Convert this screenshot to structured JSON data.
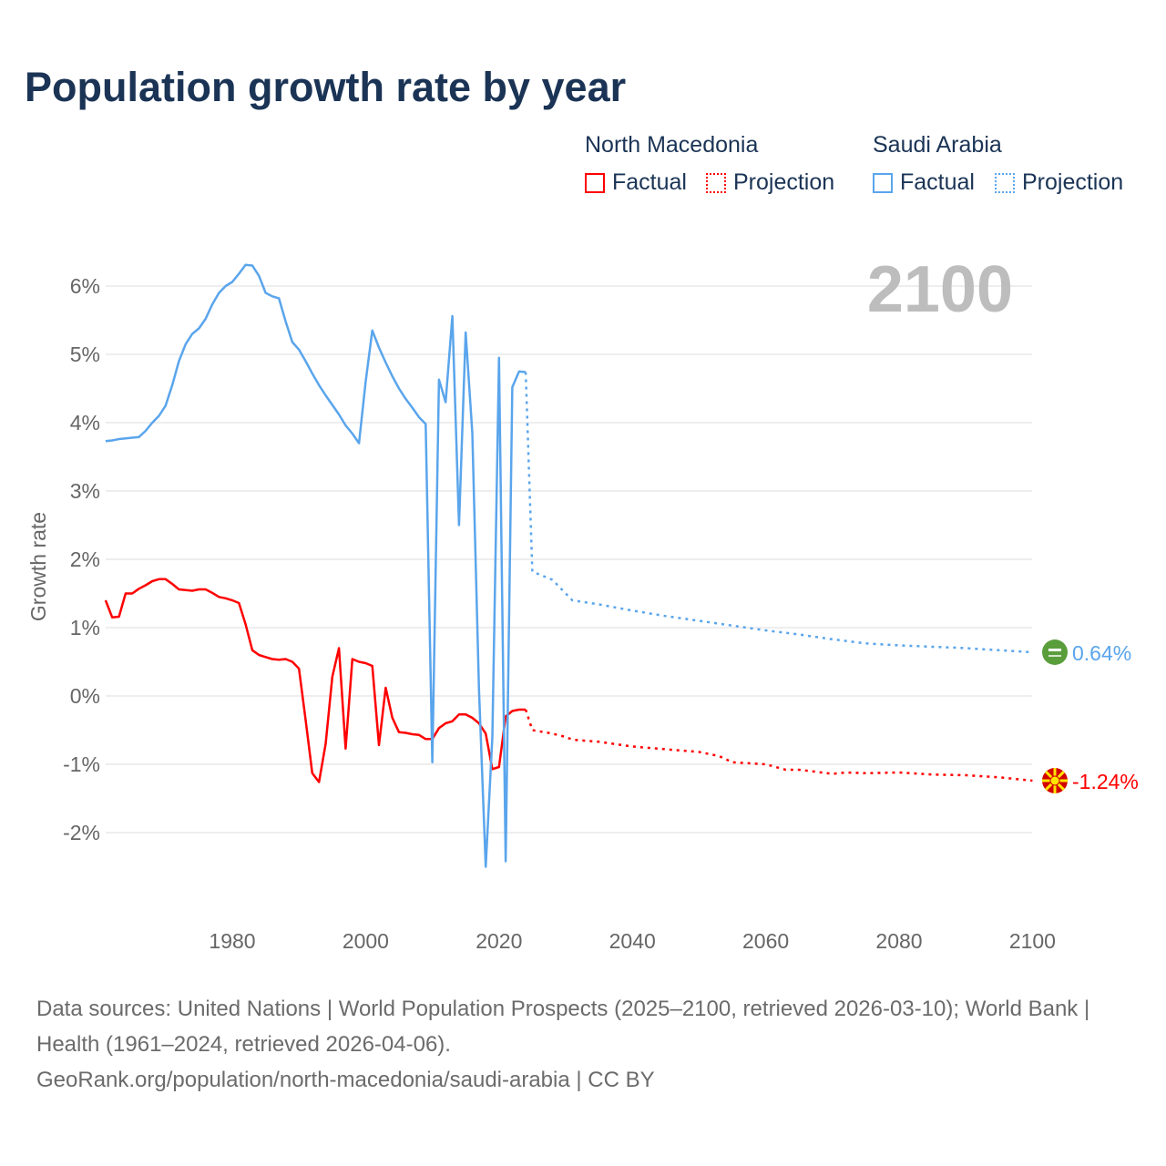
{
  "title": "Population growth rate by year",
  "legend": {
    "groups": [
      {
        "country": "North Macedonia",
        "factual": "Factual",
        "projection": "Projection",
        "color": "#ff0000"
      },
      {
        "country": "Saudi Arabia",
        "factual": "Factual",
        "projection": "Projection",
        "color": "#5aa5ec"
      }
    ]
  },
  "chart_data": {
    "type": "line",
    "title": "Population growth rate by year",
    "ylabel": "Growth rate",
    "xlabel": "",
    "year_label": "2100",
    "xlim": [
      1961,
      2100
    ],
    "ylim": [
      -3,
      6.5
    ],
    "x_ticks": [
      "1980",
      "2000",
      "2020",
      "2040",
      "2060",
      "2080",
      "2100"
    ],
    "x_tick_values": [
      1980,
      2000,
      2020,
      2040,
      2060,
      2080,
      2100
    ],
    "y_ticks": [
      "6%",
      "5%",
      "4%",
      "3%",
      "2%",
      "1%",
      "0%",
      "-1%",
      "-2%"
    ],
    "y_tick_values": [
      6,
      5,
      4,
      3,
      2,
      1,
      0,
      -1,
      -2
    ],
    "grid": true,
    "series": [
      {
        "name": "North Macedonia",
        "color": "#ff0000",
        "end_label": "-1.24%",
        "flag": "north-macedonia-flag",
        "factual": {
          "x": [
            1961,
            1962,
            1963,
            1964,
            1965,
            1966,
            1967,
            1968,
            1969,
            1970,
            1971,
            1972,
            1973,
            1974,
            1975,
            1976,
            1977,
            1978,
            1979,
            1980,
            1981,
            1982,
            1983,
            1984,
            1985,
            1986,
            1987,
            1988,
            1989,
            1990,
            1991,
            1992,
            1993,
            1994,
            1995,
            1996,
            1997,
            1998,
            1999,
            2000,
            2001,
            2002,
            2003,
            2004,
            2005,
            2006,
            2007,
            2008,
            2009,
            2010,
            2011,
            2012,
            2013,
            2014,
            2015,
            2016,
            2017,
            2018,
            2019,
            2020,
            2021,
            2022,
            2023,
            2024
          ],
          "y": [
            1.4,
            1.15,
            1.16,
            1.5,
            1.5,
            1.57,
            1.62,
            1.68,
            1.71,
            1.71,
            1.64,
            1.56,
            1.55,
            1.54,
            1.56,
            1.56,
            1.51,
            1.45,
            1.43,
            1.4,
            1.36,
            1.05,
            0.67,
            0.6,
            0.57,
            0.54,
            0.53,
            0.54,
            0.5,
            0.4,
            -0.35,
            -1.13,
            -1.26,
            -0.7,
            0.28,
            0.7,
            -0.77,
            0.54,
            0.5,
            0.48,
            0.44,
            -0.72,
            0.12,
            -0.32,
            -0.53,
            -0.54,
            -0.56,
            -0.57,
            -0.63,
            -0.63,
            -0.47,
            -0.4,
            -0.37,
            -0.27,
            -0.27,
            -0.32,
            -0.4,
            -0.55,
            -1.07,
            -1.04,
            -0.3,
            -0.22,
            -0.2,
            -0.2
          ]
        },
        "projection": {
          "x": [
            2024,
            2025,
            2028,
            2030,
            2031,
            2035,
            2040,
            2045,
            2050,
            2053,
            2055,
            2060,
            2063,
            2065,
            2070,
            2072,
            2075,
            2080,
            2085,
            2090,
            2095,
            2100
          ],
          "y": [
            -0.2,
            -0.5,
            -0.55,
            -0.6,
            -0.64,
            -0.67,
            -0.74,
            -0.78,
            -0.82,
            -0.88,
            -0.97,
            -1.0,
            -1.08,
            -1.08,
            -1.14,
            -1.12,
            -1.13,
            -1.12,
            -1.15,
            -1.16,
            -1.19,
            -1.24
          ]
        }
      },
      {
        "name": "Saudi Arabia",
        "color": "#5aa5ec",
        "end_label": "0.64%",
        "flag": "saudi-arabia-flag",
        "factual": {
          "x": [
            1961,
            1962,
            1963,
            1964,
            1965,
            1966,
            1967,
            1968,
            1969,
            1970,
            1971,
            1972,
            1973,
            1974,
            1975,
            1976,
            1977,
            1978,
            1979,
            1980,
            1981,
            1982,
            1983,
            1984,
            1985,
            1986,
            1987,
            1988,
            1989,
            1990,
            1991,
            1992,
            1993,
            1994,
            1995,
            1996,
            1997,
            1998,
            1999,
            2000,
            2001,
            2002,
            2003,
            2004,
            2005,
            2006,
            2007,
            2008,
            2009,
            2010,
            2011,
            2012,
            2013,
            2014,
            2015,
            2016,
            2017,
            2018,
            2019,
            2020,
            2021,
            2022,
            2023,
            2024
          ],
          "y": [
            3.73,
            3.74,
            3.76,
            3.77,
            3.78,
            3.79,
            3.88,
            4.0,
            4.1,
            4.25,
            4.55,
            4.9,
            5.15,
            5.3,
            5.38,
            5.52,
            5.73,
            5.9,
            6.0,
            6.06,
            6.18,
            6.31,
            6.3,
            6.15,
            5.9,
            5.85,
            5.82,
            5.48,
            5.18,
            5.07,
            4.9,
            4.72,
            4.55,
            4.4,
            4.26,
            4.12,
            3.96,
            3.84,
            3.7,
            4.6,
            5.35,
            5.1,
            4.88,
            4.68,
            4.5,
            4.35,
            4.22,
            4.08,
            3.98,
            -0.97,
            4.63,
            4.3,
            5.56,
            2.5,
            5.32,
            3.85,
            0.1,
            -2.5,
            -0.6,
            4.95,
            -2.42,
            4.52,
            4.75,
            4.74
          ]
        },
        "projection": {
          "x": [
            2024,
            2025,
            2028,
            2030,
            2031,
            2035,
            2040,
            2045,
            2050,
            2055,
            2060,
            2065,
            2070,
            2075,
            2080,
            2085,
            2090,
            2095,
            2100
          ],
          "y": [
            4.74,
            1.82,
            1.7,
            1.5,
            1.4,
            1.34,
            1.25,
            1.17,
            1.1,
            1.03,
            0.96,
            0.9,
            0.83,
            0.77,
            0.74,
            0.72,
            0.7,
            0.67,
            0.64
          ]
        }
      }
    ]
  },
  "footer": {
    "sources": "Data sources: United Nations | World Population Prospects (2025–2100, retrieved 2026-03-10); World Bank | Health (1961–2024, retrieved 2026-04-06).",
    "link": "GeoRank.org/population/north-macedonia/saudi-arabia | CC BY"
  }
}
